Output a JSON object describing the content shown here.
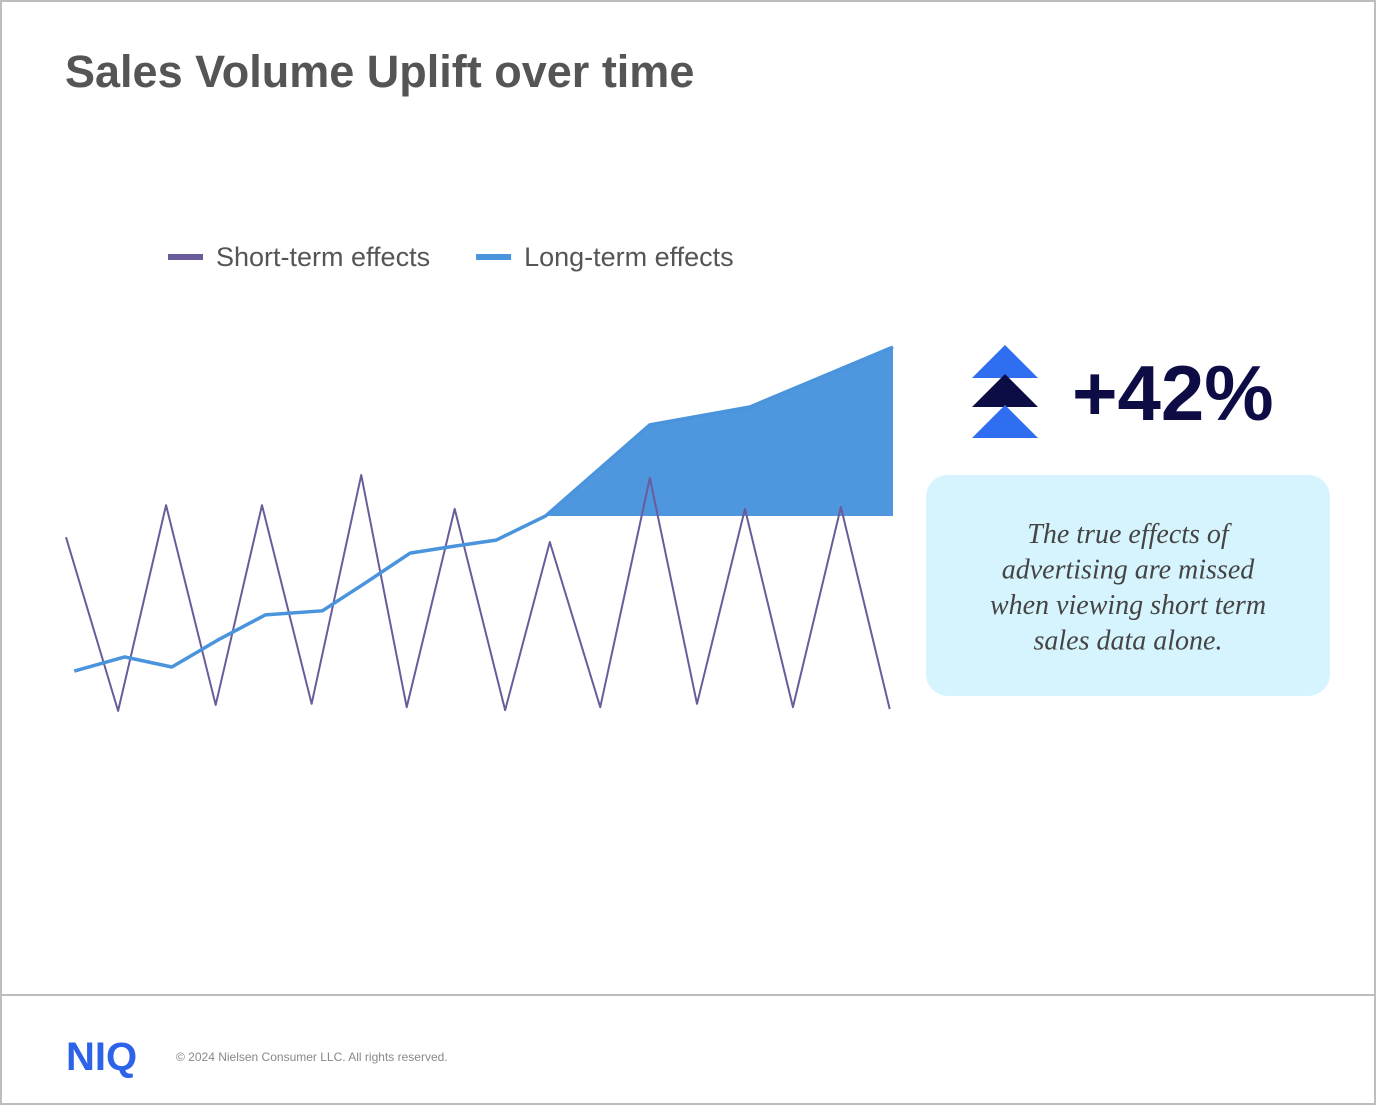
{
  "chart_data": {
    "type": "line",
    "title": "Sales Volume Uplift over time",
    "xlim": [
      0,
      100
    ],
    "ylim": [
      0,
      100
    ],
    "grid": false,
    "legend": "top-left",
    "series": [
      {
        "name": "Short-term effects",
        "color": "#6a5b9a",
        "x": [
          0,
          6.3,
          12.1,
          18.1,
          23.7,
          29.7,
          35.7,
          41.2,
          47.0,
          53.1,
          58.5,
          64.6,
          70.6,
          76.3,
          82.1,
          87.9,
          93.7,
          99.6
        ],
        "values": [
          47,
          0.3,
          55.6,
          1.9,
          55.6,
          2.2,
          63.7,
          1.3,
          54.6,
          0.5,
          45.7,
          1.3,
          62.9,
          2.2,
          54.6,
          1.3,
          55.1,
          0.8
        ]
      },
      {
        "name": "Long-term effects",
        "color": "#4a94dd",
        "x": [
          1.0,
          7.1,
          12.8,
          18.4,
          24.1,
          31.0,
          36.2,
          41.6,
          47.0,
          52.0,
          58.0,
          70.6,
          82.7,
          100
        ],
        "values": [
          11.0,
          14.8,
          12.1,
          19.4,
          26.1,
          27.2,
          34.7,
          42.7,
          44.6,
          46.2,
          52.7,
          77.2,
          82.0,
          98.1
        ]
      }
    ]
  },
  "highlight": {
    "value_text": "+42%",
    "note": [
      "The true effects of",
      "advertising are missed",
      "when viewing short term",
      "sales data alone."
    ]
  },
  "footer": {
    "logo": "NIQ",
    "copyright": "© 2024 Nielsen Consumer LLC. All rights reserved."
  }
}
